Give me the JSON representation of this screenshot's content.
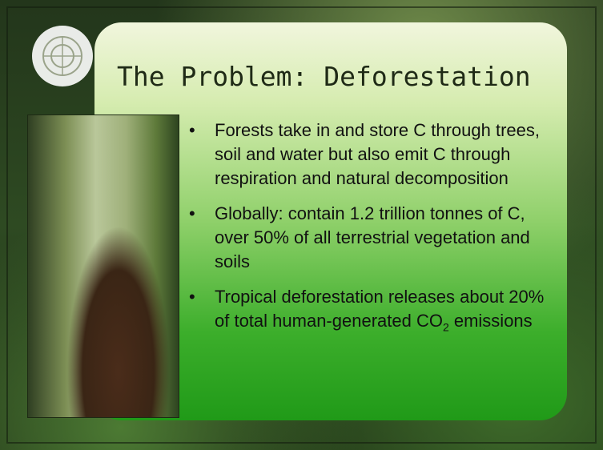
{
  "slide": {
    "title": "The Problem: Deforestation",
    "bullets": [
      {
        "text": "Forests take in and store C through trees, soil and water but also emit C through respiration and natural decomposition"
      },
      {
        "text": "Globally: contain 1.2 trillion tonnes of C, over 50% of all terrestrial vegetation and soils"
      },
      {
        "text": "Tropical deforestation releases about 20% of total human-generated CO",
        "sub": "2",
        "after": " emissions"
      }
    ]
  }
}
